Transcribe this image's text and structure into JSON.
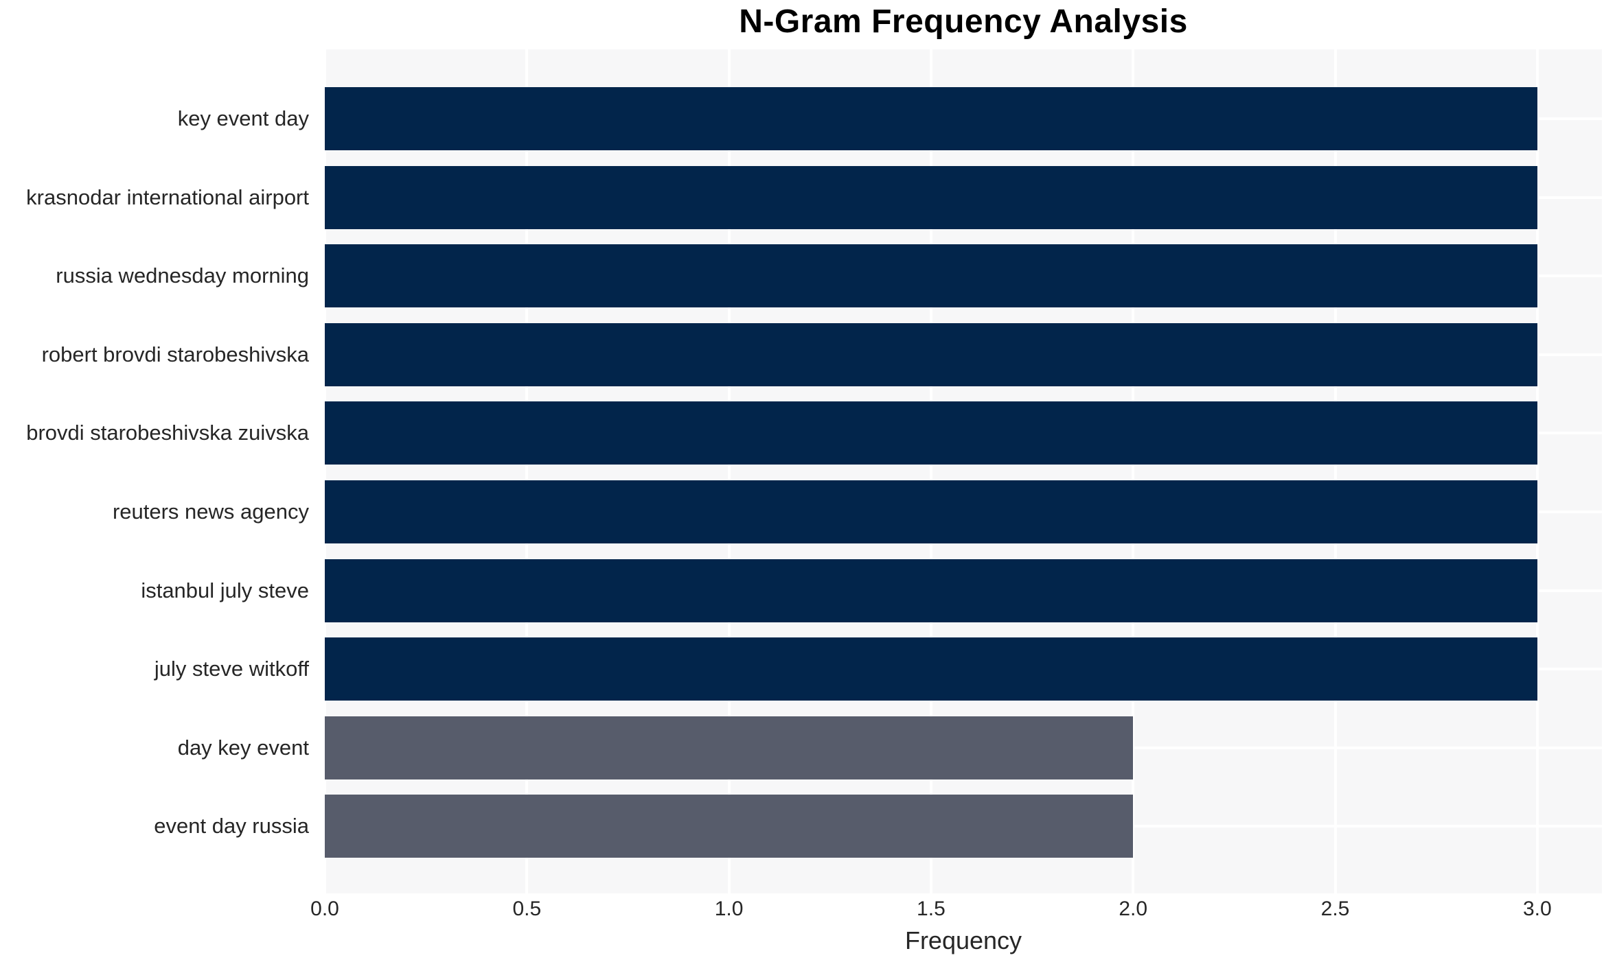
{
  "chart_data": {
    "type": "bar",
    "orientation": "horizontal",
    "title": "N-Gram Frequency Analysis",
    "xlabel": "Frequency",
    "ylabel": "",
    "categories": [
      "key event day",
      "krasnodar international airport",
      "russia wednesday morning",
      "robert brovdi starobeshivska",
      "brovdi starobeshivska zuivska",
      "reuters news agency",
      "istanbul july steve",
      "july steve witkoff",
      "day key event",
      "event day russia"
    ],
    "values": [
      3,
      3,
      3,
      3,
      3,
      3,
      3,
      3,
      2,
      2
    ],
    "bar_colors": [
      "#02254B",
      "#02254B",
      "#02254B",
      "#02254B",
      "#02254B",
      "#02254B",
      "#02254B",
      "#02254B",
      "#575C6B",
      "#575C6B"
    ],
    "xlim": [
      0,
      3.16
    ],
    "xticks": [
      0,
      0.5,
      1,
      1.5,
      2,
      2.5,
      3
    ],
    "xtick_labels": [
      "0.0",
      "0.5",
      "1.0",
      "1.5",
      "2.0",
      "2.5",
      "3.0"
    ],
    "grid": "white gridlines on light-gray plot background; vertical lines at x ticks, horizontal lines at bar centers, drawn beneath bars",
    "legend": "none",
    "colors": {
      "bar_high_frequency": "#02254B",
      "bar_low_frequency": "#575C6B",
      "plot_background": "#F7F7F8",
      "gridline": "#FFFFFF",
      "text": "#262626",
      "title_text": "#000000"
    }
  }
}
